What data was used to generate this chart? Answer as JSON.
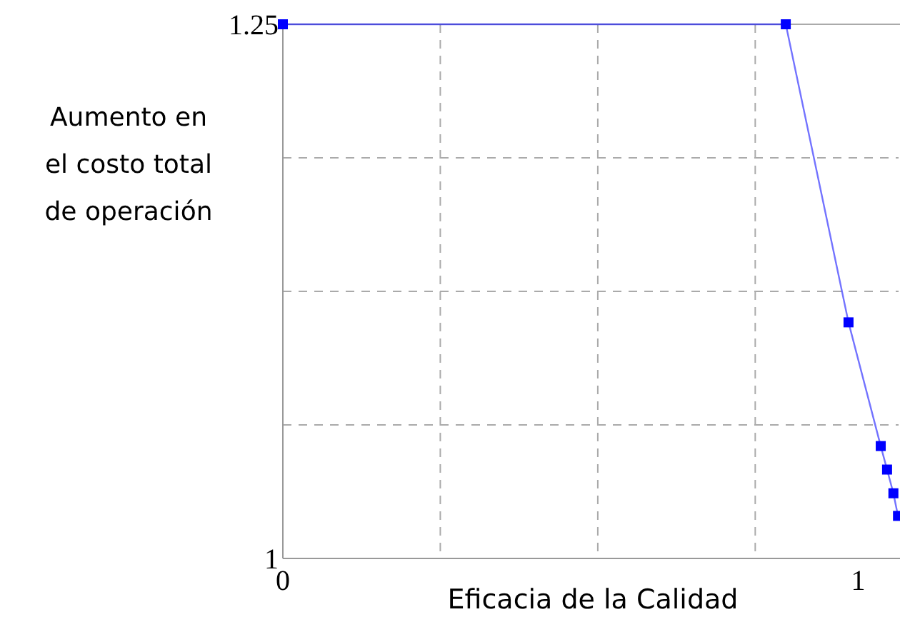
{
  "chart_data": {
    "type": "line",
    "xlabel": "Eficacia de la Calidad",
    "ylabel": "Aumento en\nel costo total\nde operación",
    "x": [
      0,
      0.874,
      0.983,
      1.039,
      1.05,
      1.061,
      1.069
    ],
    "series": [
      {
        "color": "#0000ff",
        "values": [
          1.25,
          1.25,
          1.1105,
          1.0526,
          1.0416,
          1.0305,
          1.0199
        ]
      }
    ],
    "xlim": [
      0,
      1.07
    ],
    "xticks": [
      0,
      {
        "value": 0.2736,
        "label": null
      },
      {
        "value": 0.5473,
        "label": null
      },
      {
        "value": 0.8209,
        "label": null
      },
      1
    ],
    "ylim": [
      1,
      1.25
    ],
    "yticks": [
      1,
      {
        "value": 1.0625,
        "label": null
      },
      {
        "value": 1.125,
        "label": null
      },
      {
        "value": 1.1875,
        "label": null
      },
      1.25
    ],
    "grid": true,
    "marker": "square",
    "line_style": "solid"
  }
}
